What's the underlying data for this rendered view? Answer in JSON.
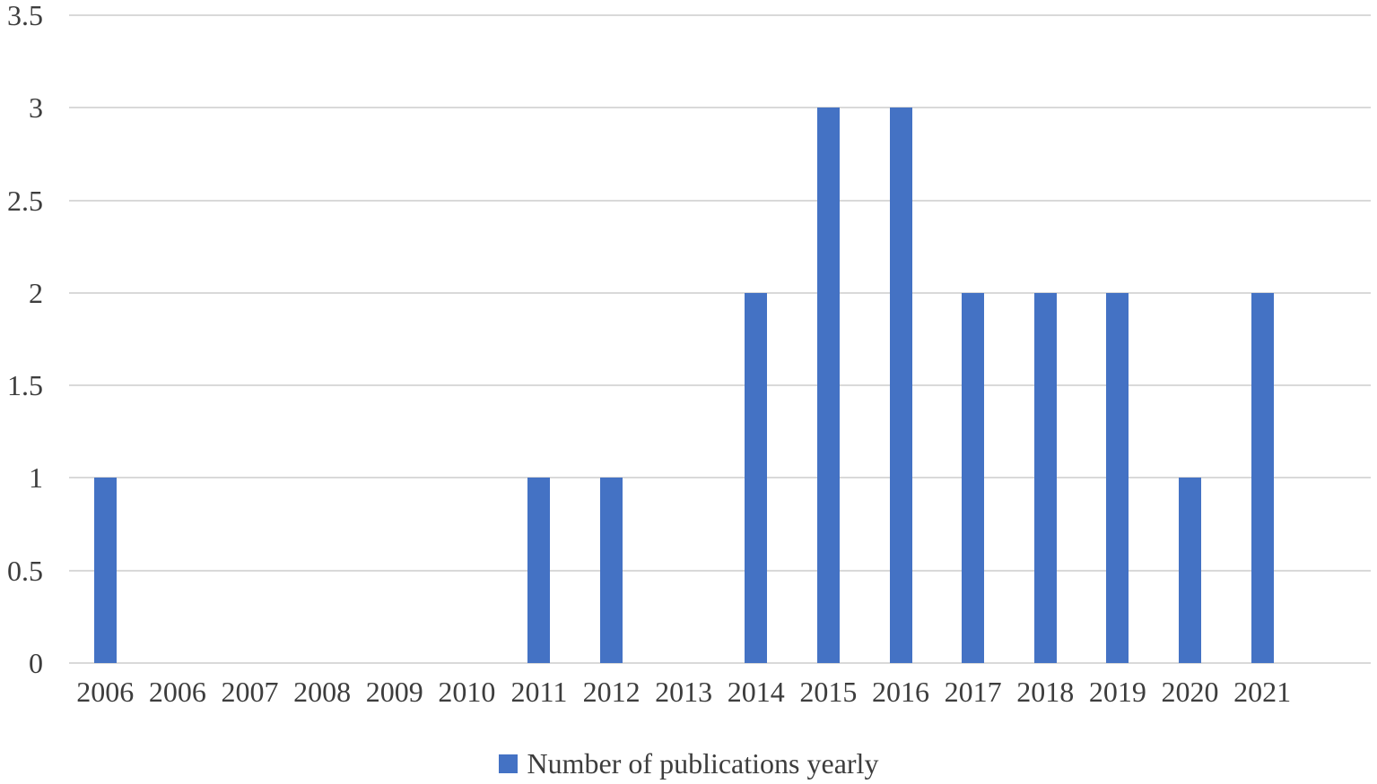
{
  "chart_data": {
    "type": "bar",
    "categories": [
      "2006",
      "2006",
      "2007",
      "2008",
      "2009",
      "2010",
      "2011",
      "2012",
      "2013",
      "2014",
      "2015",
      "2016",
      "2017",
      "2018",
      "2019",
      "2020",
      "2021"
    ],
    "values": [
      1,
      0,
      0,
      0,
      0,
      0,
      1,
      1,
      0,
      2,
      3,
      3,
      2,
      2,
      2,
      1,
      2
    ],
    "series_name": "Number of publications yearly",
    "ylim": [
      0,
      3.5
    ],
    "ytick_interval": 0.5,
    "yticks": [
      "3.5",
      "3",
      "2.5",
      "2",
      "1.5",
      "1",
      "0.5",
      "0"
    ],
    "grid": true,
    "empty_trailing_slots": 1,
    "legend": {
      "label": "Number of publications yearly",
      "position": "bottom",
      "marker": "square-icon",
      "marker_color": "#4472C4"
    },
    "bar_color": "#4472C4",
    "gridline_color": "#D9D9D9",
    "text_color": "#3D3D3D",
    "background_color": "#FFFFFF"
  }
}
